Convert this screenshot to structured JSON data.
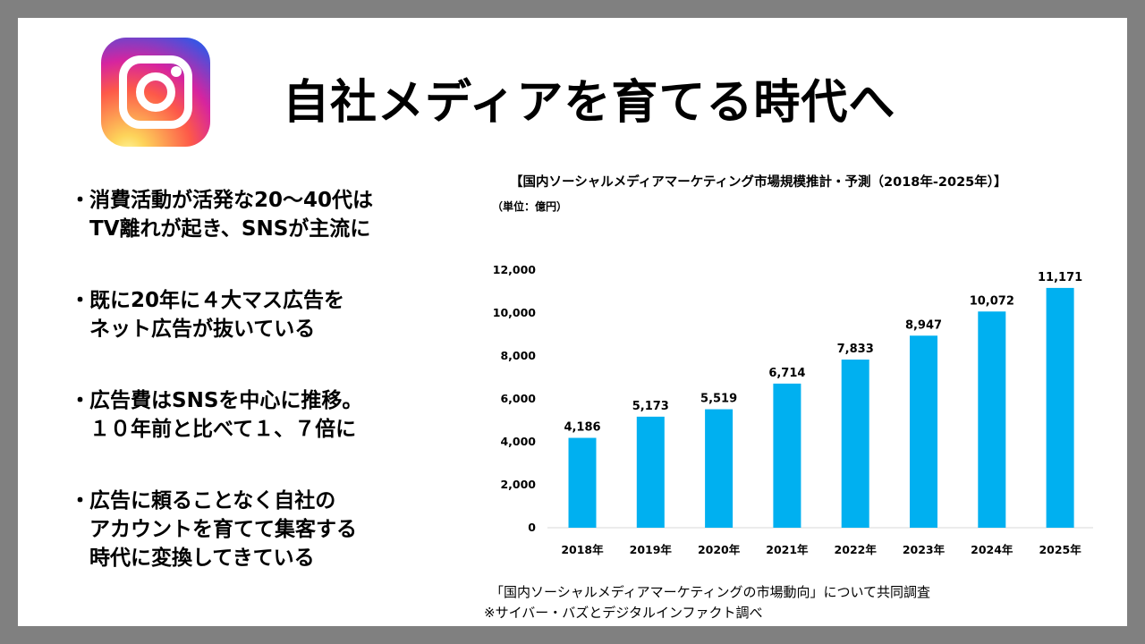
{
  "slide": {
    "title": "自社メディアを育てる時代へ",
    "logo_icon": "instagram-logo-icon"
  },
  "bullets": [
    {
      "marker": "・",
      "lines": [
        "消費活動が活発な20～40代は",
        "TV離れが起き、SNSが主流に"
      ]
    },
    {
      "marker": "・",
      "lines": [
        "既に20年に４大マス広告を",
        "ネット広告が抜いている"
      ]
    },
    {
      "marker": "・",
      "lines": [
        "広告費はSNSを中心に推移。",
        "１０年前と比べて１、７倍に"
      ]
    },
    {
      "marker": "・",
      "lines": [
        "広告に頼ることなく自社の",
        "アカウントを育てて集客する",
        "時代に変換してきている"
      ]
    }
  ],
  "chart_data": {
    "type": "bar",
    "title": "【国内ソーシャルメディアマーケティング市場規模推計・予測（2018年-2025年）】",
    "unit_label": "（単位：億円）",
    "categories": [
      "2018年",
      "2019年",
      "2020年",
      "2021年",
      "2022年",
      "2023年",
      "2024年",
      "2025年"
    ],
    "values": [
      4186,
      5173,
      5519,
      6714,
      7833,
      8947,
      10072,
      11171
    ],
    "value_labels": [
      "4,186",
      "5,173",
      "5,519",
      "6,714",
      "7,833",
      "8,947",
      "10,072",
      "11,171"
    ],
    "yticks": [
      "0",
      "2,000",
      "4,000",
      "6,000",
      "8,000",
      "10,000",
      "12,000"
    ],
    "ylim": [
      0,
      12000
    ],
    "bar_color": "#00b0f0",
    "grid": false
  },
  "source": {
    "line1": "「国内ソーシャルメディアマーケティングの市場動向」について共同調査",
    "line2": "※サイバー・バズとデジタルインファクト調べ"
  }
}
